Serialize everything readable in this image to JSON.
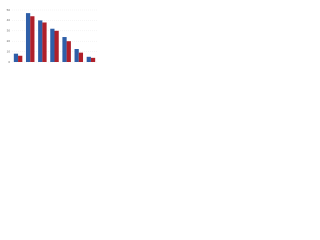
{
  "chart_data": {
    "type": "bar",
    "categories": [
      null,
      null,
      null,
      null,
      null,
      null,
      null
    ],
    "series": [
      {
        "color": "#2f5fa8",
        "values": [
          8,
          47,
          40,
          32,
          24,
          12.5,
          5
        ]
      },
      {
        "color": "#b0202a",
        "values": [
          6,
          44,
          38,
          30,
          20,
          9,
          4
        ]
      }
    ],
    "ylim": [
      0,
      50
    ],
    "yticks": [
      0,
      10,
      20,
      30,
      40,
      50
    ],
    "grid": true
  }
}
